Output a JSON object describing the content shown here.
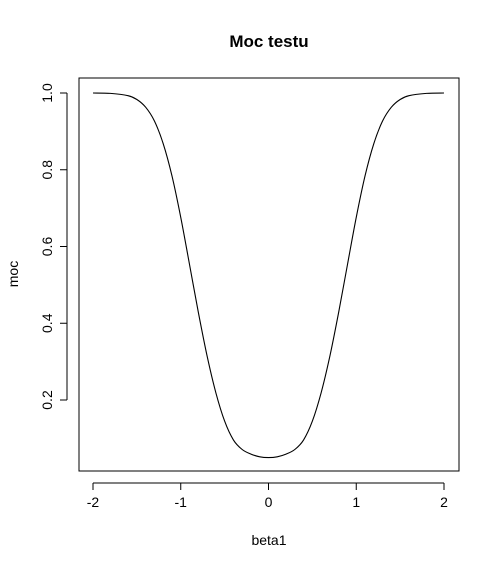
{
  "chart_data": {
    "type": "line",
    "title": "Moc testu",
    "xlabel": "beta1",
    "ylabel": "moc",
    "xlim": [
      -2,
      2
    ],
    "ylim": [
      0.05,
      1.0
    ],
    "x_ticks": [
      -2,
      -1,
      0,
      1,
      2
    ],
    "x_tick_labels": [
      "-2",
      "-1",
      "0",
      "1",
      "2"
    ],
    "y_ticks": [
      0.2,
      0.4,
      0.6,
      0.8,
      1.0
    ],
    "y_tick_labels": [
      "0.2",
      "0.4",
      "0.6",
      "0.8",
      "1.0"
    ],
    "grid": false,
    "legend": "none",
    "line_color": "#000000",
    "series": [
      {
        "x": [
          -2.0,
          -1.8,
          -1.6,
          -1.5,
          -1.4,
          -1.3,
          -1.2,
          -1.1,
          -1.0,
          -0.9,
          -0.8,
          -0.7,
          -0.6,
          -0.5,
          -0.4,
          -0.3,
          -0.2,
          -0.1,
          0.0,
          0.1,
          0.2,
          0.3,
          0.4,
          0.5,
          0.6,
          0.7,
          0.8,
          0.9,
          1.0,
          1.1,
          1.2,
          1.3,
          1.4,
          1.5,
          1.6,
          1.8,
          2.0
        ],
        "y": [
          1.0,
          0.999,
          0.993,
          0.983,
          0.963,
          0.927,
          0.868,
          0.784,
          0.676,
          0.553,
          0.429,
          0.315,
          0.219,
          0.145,
          0.096,
          0.071,
          0.059,
          0.052,
          0.05,
          0.052,
          0.059,
          0.071,
          0.096,
          0.145,
          0.219,
          0.315,
          0.429,
          0.553,
          0.676,
          0.784,
          0.868,
          0.927,
          0.963,
          0.983,
          0.993,
          0.999,
          1.0
        ]
      }
    ]
  }
}
